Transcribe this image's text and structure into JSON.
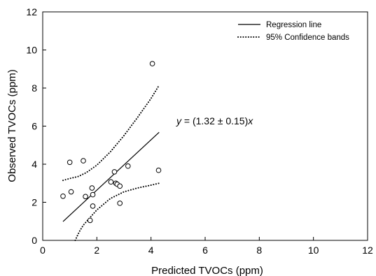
{
  "chart_data": {
    "type": "scatter",
    "xlabel": "Predicted TVOCs (ppm)",
    "ylabel": "Observed TVOCs (ppm)",
    "xlim": [
      0,
      12
    ],
    "ylim": [
      0,
      12
    ],
    "xticks": [
      0,
      2,
      4,
      6,
      8,
      10,
      12
    ],
    "yticks": [
      0,
      2,
      4,
      6,
      8,
      10,
      12
    ],
    "grid": false,
    "legend_position": "top-right",
    "legend": [
      {
        "label": "Regression line",
        "style": "solid"
      },
      {
        "label": "95% Confidence bands",
        "style": "dotted"
      }
    ],
    "annotation": {
      "parts": [
        "y",
        " = (1.32 ± 0.15)",
        "x"
      ]
    },
    "points": [
      {
        "x": 0.75,
        "y": 2.32
      },
      {
        "x": 1.0,
        "y": 4.1
      },
      {
        "x": 1.05,
        "y": 2.55
      },
      {
        "x": 1.5,
        "y": 4.18
      },
      {
        "x": 1.58,
        "y": 2.3
      },
      {
        "x": 1.75,
        "y": 1.05
      },
      {
        "x": 1.82,
        "y": 2.75
      },
      {
        "x": 1.85,
        "y": 2.4
      },
      {
        "x": 1.85,
        "y": 1.8
      },
      {
        "x": 2.52,
        "y": 3.07
      },
      {
        "x": 2.65,
        "y": 3.6
      },
      {
        "x": 2.7,
        "y": 3.0
      },
      {
        "x": 2.75,
        "y": 2.95
      },
      {
        "x": 2.85,
        "y": 2.85
      },
      {
        "x": 2.85,
        "y": 1.95
      },
      {
        "x": 3.15,
        "y": 3.9
      },
      {
        "x": 4.05,
        "y": 9.28
      },
      {
        "x": 4.28,
        "y": 3.68
      }
    ],
    "regression_line": {
      "slope": 1.32,
      "x": [
        0.75,
        4.3
      ]
    },
    "confidence_upper": {
      "x": [
        0.75,
        1.0,
        1.3,
        1.6,
        2.0,
        2.5,
        3.0,
        3.5,
        4.0,
        4.3
      ],
      "y": [
        3.15,
        3.25,
        3.35,
        3.55,
        3.95,
        4.65,
        5.5,
        6.45,
        7.45,
        8.15
      ]
    },
    "confidence_lower": {
      "x": [
        1.2,
        1.35,
        1.5,
        1.75,
        2.0,
        2.5,
        3.0,
        3.5,
        4.0,
        4.3
      ],
      "y": [
        0.0,
        0.45,
        0.8,
        1.2,
        1.6,
        2.2,
        2.55,
        2.75,
        2.9,
        3.0
      ]
    }
  }
}
